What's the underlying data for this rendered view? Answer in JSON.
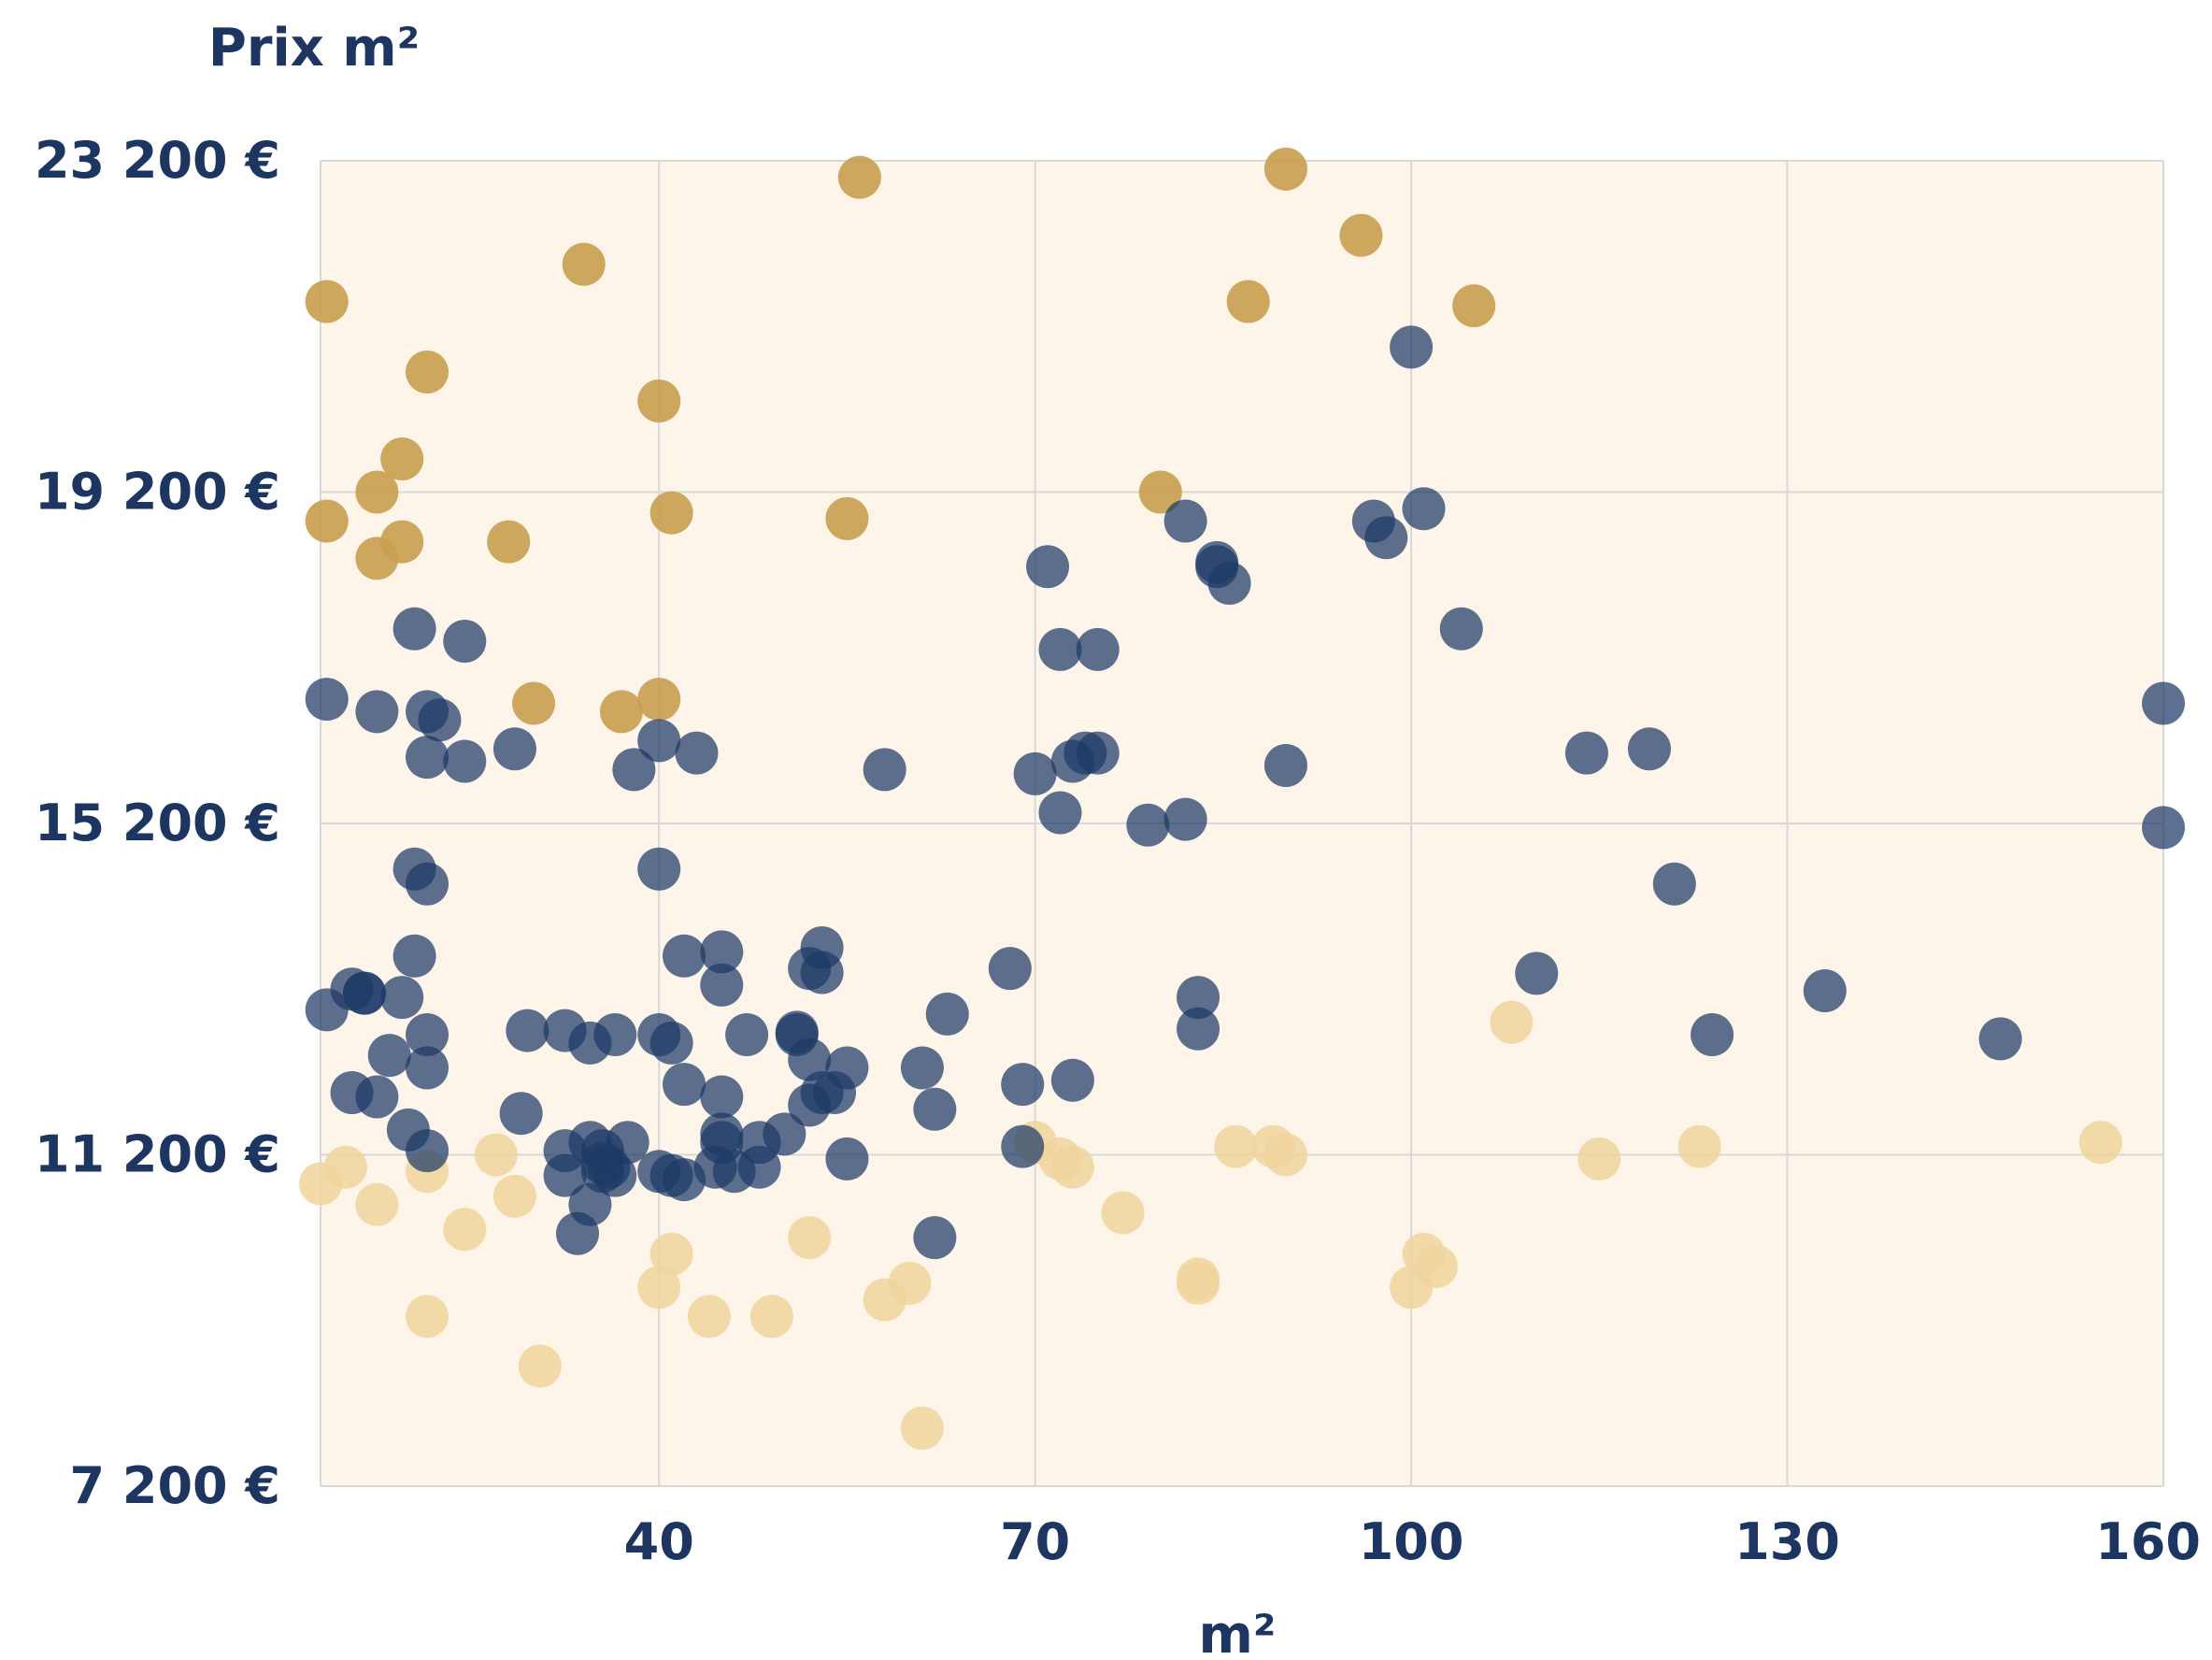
{
  "chart_data": {
    "type": "scatter",
    "title": "",
    "ylabel": "Prix m²",
    "xlabel": "m²",
    "xlim": [
      13,
      160
    ],
    "ylim": [
      7200,
      23200
    ],
    "x_ticks": [
      40,
      70,
      100,
      130,
      160
    ],
    "x_tick_labels": [
      "40",
      "70",
      "100",
      "130",
      "160"
    ],
    "y_ticks": [
      7200,
      11200,
      15200,
      19200,
      23200
    ],
    "y_tick_labels": [
      "7 200 €",
      "11 200 €",
      "15 200 €",
      "19 200 €",
      "23 200 €"
    ],
    "grid": true,
    "plot_background": "#fdf5e9",
    "colors": {
      "high": "#c9a050",
      "mid": "#1d3a66",
      "low": "#f0d49c",
      "text": "#1d3661"
    },
    "series": [
      {
        "key": "high",
        "points": [
          [
            13.5,
            21500
          ],
          [
            21.5,
            20650
          ],
          [
            40,
            20300
          ],
          [
            34,
            21950
          ],
          [
            56,
            23000
          ],
          [
            90,
            23100
          ],
          [
            96,
            22300
          ],
          [
            87,
            21500
          ],
          [
            105,
            21450
          ],
          [
            19.5,
            19600
          ],
          [
            17.5,
            19200
          ],
          [
            13.5,
            18850
          ],
          [
            17.5,
            18400
          ],
          [
            19.5,
            18600
          ],
          [
            28,
            18600
          ],
          [
            41,
            18950
          ],
          [
            55,
            18880
          ],
          [
            80,
            19200
          ],
          [
            30,
            16650
          ],
          [
            37,
            16550
          ],
          [
            40,
            16700
          ]
        ]
      },
      {
        "key": "mid",
        "points": [
          [
            100,
            20950
          ],
          [
            101,
            19000
          ],
          [
            97,
            18850
          ],
          [
            98,
            18650
          ],
          [
            82,
            18850
          ],
          [
            84.5,
            18350
          ],
          [
            84.5,
            18300
          ],
          [
            85.5,
            18100
          ],
          [
            71,
            18300
          ],
          [
            104,
            17550
          ],
          [
            72,
            17300
          ],
          [
            75,
            17300
          ],
          [
            20.5,
            17550
          ],
          [
            24.5,
            17400
          ],
          [
            13.5,
            16700
          ],
          [
            17.5,
            16550
          ],
          [
            21.5,
            16550
          ],
          [
            22.5,
            16450
          ],
          [
            21.5,
            16000
          ],
          [
            24.5,
            15950
          ],
          [
            28.5,
            16100
          ],
          [
            38,
            15850
          ],
          [
            40,
            16200
          ],
          [
            43,
            16050
          ],
          [
            58,
            15850
          ],
          [
            70,
            15800
          ],
          [
            73,
            15950
          ],
          [
            74,
            16050
          ],
          [
            75,
            16050
          ],
          [
            90,
            15900
          ],
          [
            114,
            16050
          ],
          [
            119,
            16100
          ],
          [
            160,
            16650
          ],
          [
            72,
            15330
          ],
          [
            79,
            15180
          ],
          [
            82,
            15250
          ],
          [
            20.5,
            14650
          ],
          [
            21.5,
            14470
          ],
          [
            40,
            14650
          ],
          [
            121,
            14470
          ],
          [
            68,
            13450
          ],
          [
            16.5,
            13150
          ],
          [
            20.5,
            13600
          ],
          [
            42,
            13600
          ],
          [
            45,
            13650
          ],
          [
            53,
            13700
          ],
          [
            52,
            13450
          ],
          [
            53,
            13400
          ],
          [
            45,
            13250
          ],
          [
            110,
            13390
          ],
          [
            133,
            13180
          ],
          [
            63,
            12900
          ],
          [
            13.5,
            12950
          ],
          [
            15.5,
            13200
          ],
          [
            16.5,
            13150
          ],
          [
            19.5,
            13100
          ],
          [
            83,
            13100
          ],
          [
            83,
            12720
          ],
          [
            21.5,
            12650
          ],
          [
            21.5,
            12250
          ],
          [
            29.5,
            12700
          ],
          [
            32.5,
            12700
          ],
          [
            34.5,
            12550
          ],
          [
            36.5,
            12650
          ],
          [
            40,
            12650
          ],
          [
            41,
            12550
          ],
          [
            47,
            12650
          ],
          [
            51,
            12650
          ],
          [
            51,
            12680
          ],
          [
            52,
            12350
          ],
          [
            55,
            12250
          ],
          [
            61,
            12250
          ],
          [
            69,
            12050
          ],
          [
            73,
            12100
          ],
          [
            124,
            12650
          ],
          [
            147,
            12600
          ],
          [
            18.5,
            12400
          ],
          [
            15.5,
            11950
          ],
          [
            17.5,
            11900
          ],
          [
            20,
            11500
          ],
          [
            29,
            11700
          ],
          [
            42,
            12050
          ],
          [
            45,
            11900
          ],
          [
            53,
            11950
          ],
          [
            52,
            11800
          ],
          [
            54,
            11950
          ],
          [
            62,
            11750
          ],
          [
            50,
            11450
          ],
          [
            45,
            11450
          ],
          [
            48,
            11350
          ],
          [
            44.5,
            11050
          ],
          [
            35.5,
            11100
          ],
          [
            34.5,
            11350
          ],
          [
            37.5,
            11350
          ],
          [
            32.5,
            11250
          ],
          [
            35.5,
            11250
          ],
          [
            36,
            11050
          ],
          [
            36.5,
            10950
          ],
          [
            32.5,
            10950
          ],
          [
            35.5,
            11000
          ],
          [
            40,
            11000
          ],
          [
            41,
            10950
          ],
          [
            42,
            10900
          ],
          [
            46,
            11000
          ],
          [
            48,
            11050
          ],
          [
            45,
            11350
          ],
          [
            55,
            11150
          ],
          [
            69,
            11300
          ],
          [
            21.5,
            11250
          ],
          [
            34.5,
            10600
          ],
          [
            33.5,
            10250
          ],
          [
            62,
            10200
          ],
          [
            160,
            15150
          ]
        ]
      },
      {
        "key": "low",
        "points": [
          [
            13,
            10850
          ],
          [
            15,
            11050
          ],
          [
            21.5,
            11000
          ],
          [
            17.5,
            10600
          ],
          [
            24.5,
            10300
          ],
          [
            27,
            11200
          ],
          [
            28.5,
            10700
          ],
          [
            30.5,
            8650
          ],
          [
            21.5,
            9250
          ],
          [
            41,
            10000
          ],
          [
            40,
            9600
          ],
          [
            44,
            9250
          ],
          [
            49,
            9250
          ],
          [
            52,
            10200
          ],
          [
            58,
            9450
          ],
          [
            60,
            9650
          ],
          [
            61,
            7900
          ],
          [
            70,
            11350
          ],
          [
            72,
            11150
          ],
          [
            73,
            11050
          ],
          [
            77,
            10500
          ],
          [
            83,
            9650
          ],
          [
            83,
            9700
          ],
          [
            86,
            11300
          ],
          [
            89,
            11300
          ],
          [
            90,
            11200
          ],
          [
            100,
            9600
          ],
          [
            101,
            10000
          ],
          [
            102,
            9850
          ],
          [
            108,
            12800
          ],
          [
            115,
            11150
          ],
          [
            123,
            11300
          ],
          [
            155,
            11350
          ]
        ]
      }
    ]
  }
}
